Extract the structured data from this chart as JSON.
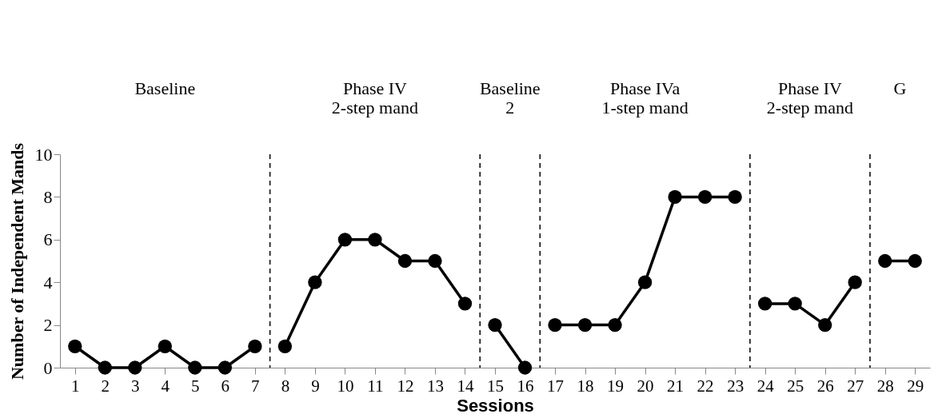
{
  "chart_data": {
    "type": "line",
    "xlabel": "Sessions",
    "ylabel": "Number of Independent Mands",
    "xlim": [
      0.5,
      29.5
    ],
    "xticks": [
      1,
      2,
      3,
      4,
      5,
      6,
      7,
      8,
      9,
      10,
      11,
      12,
      13,
      14,
      15,
      16,
      17,
      18,
      19,
      20,
      21,
      22,
      23,
      24,
      25,
      26,
      27,
      28,
      29
    ],
    "ylim": [
      0,
      10
    ],
    "yticks": [
      0,
      2,
      4,
      6,
      8,
      10
    ],
    "grid": false,
    "legend": false,
    "marker": "circle",
    "line_style": "solid",
    "series": [
      {
        "color": "#000000",
        "x": [
          1,
          2,
          3,
          4,
          5,
          6,
          7
        ],
        "values": [
          1,
          0,
          0,
          1,
          0,
          0,
          1
        ]
      },
      {
        "color": "#000000",
        "x": [
          8,
          9,
          10,
          11,
          12,
          13,
          14
        ],
        "values": [
          1,
          4,
          6,
          6,
          5,
          5,
          3
        ]
      },
      {
        "color": "#000000",
        "x": [
          15,
          16
        ],
        "values": [
          2,
          0
        ]
      },
      {
        "color": "#000000",
        "x": [
          17,
          18,
          19,
          20,
          21,
          22,
          23
        ],
        "values": [
          2,
          2,
          2,
          4,
          8,
          8,
          8
        ]
      },
      {
        "color": "#000000",
        "x": [
          24,
          25,
          26,
          27
        ],
        "values": [
          3,
          3,
          2,
          4
        ]
      },
      {
        "color": "#000000",
        "x": [
          28,
          29
        ],
        "values": [
          5,
          5
        ]
      }
    ],
    "ref_lines": [
      {
        "axis": "x",
        "value": 7.5,
        "line_style": "dashed"
      },
      {
        "axis": "x",
        "value": 14.5,
        "line_style": "dashed"
      },
      {
        "axis": "x",
        "value": 16.5,
        "line_style": "dashed"
      },
      {
        "axis": "x",
        "value": 23.5,
        "line_style": "dashed"
      },
      {
        "axis": "x",
        "value": 27.5,
        "line_style": "dashed"
      }
    ],
    "annotations": [
      "Baseline",
      "Phase IV\n2-step mand",
      "Baseline\n2",
      "Phase IVa\n1-step mand",
      "Phase IV\n2-step mand",
      "G"
    ]
  }
}
